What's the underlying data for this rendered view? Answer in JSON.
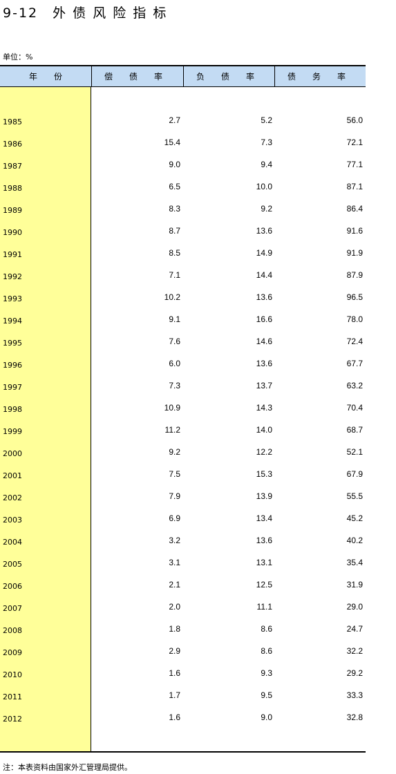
{
  "title": "9-12　外 债 风 险 指 标",
  "unit": "单位：%",
  "headers": [
    "年　　份",
    "偿　　债　　率",
    "负　　债　　率",
    "债　　务　　率"
  ],
  "rows": [
    {
      "year": "1985",
      "c1": "2.7",
      "c2": "5.2",
      "c3": "56.0"
    },
    {
      "year": "1986",
      "c1": "15.4",
      "c2": "7.3",
      "c3": "72.1"
    },
    {
      "year": "1987",
      "c1": "9.0",
      "c2": "9.4",
      "c3": "77.1"
    },
    {
      "year": "1988",
      "c1": "6.5",
      "c2": "10.0",
      "c3": "87.1"
    },
    {
      "year": "1989",
      "c1": "8.3",
      "c2": "9.2",
      "c3": "86.4"
    },
    {
      "year": "1990",
      "c1": "8.7",
      "c2": "13.6",
      "c3": "91.6"
    },
    {
      "year": "1991",
      "c1": "8.5",
      "c2": "14.9",
      "c3": "91.9"
    },
    {
      "year": "1992",
      "c1": "7.1",
      "c2": "14.4",
      "c3": "87.9"
    },
    {
      "year": "1993",
      "c1": "10.2",
      "c2": "13.6",
      "c3": "96.5"
    },
    {
      "year": "1994",
      "c1": "9.1",
      "c2": "16.6",
      "c3": "78.0"
    },
    {
      "year": "1995",
      "c1": "7.6",
      "c2": "14.6",
      "c3": "72.4"
    },
    {
      "year": "1996",
      "c1": "6.0",
      "c2": "13.6",
      "c3": "67.7"
    },
    {
      "year": "1997",
      "c1": "7.3",
      "c2": "13.7",
      "c3": "63.2"
    },
    {
      "year": "1998",
      "c1": "10.9",
      "c2": "14.3",
      "c3": "70.4"
    },
    {
      "year": "1999",
      "c1": "11.2",
      "c2": "14.0",
      "c3": "68.7"
    },
    {
      "year": "2000",
      "c1": "9.2",
      "c2": "12.2",
      "c3": "52.1"
    },
    {
      "year": "2001",
      "c1": "7.5",
      "c2": "15.3",
      "c3": "67.9"
    },
    {
      "year": "2002",
      "c1": "7.9",
      "c2": "13.9",
      "c3": "55.5"
    },
    {
      "year": "2003",
      "c1": "6.9",
      "c2": "13.4",
      "c3": "45.2"
    },
    {
      "year": "2004",
      "c1": "3.2",
      "c2": "13.6",
      "c3": "40.2"
    },
    {
      "year": "2005",
      "c1": "3.1",
      "c2": "13.1",
      "c3": "35.4"
    },
    {
      "year": "2006",
      "c1": "2.1",
      "c2": "12.5",
      "c3": "31.9"
    },
    {
      "year": "2007",
      "c1": "2.0",
      "c2": "11.1",
      "c3": "29.0"
    },
    {
      "year": "2008",
      "c1": "1.8",
      "c2": "8.6",
      "c3": "24.7"
    },
    {
      "year": "2009",
      "c1": "2.9",
      "c2": "8.6",
      "c3": "32.2"
    },
    {
      "year": "2010",
      "c1": "1.6",
      "c2": "9.3",
      "c3": "29.2"
    },
    {
      "year": "2011",
      "c1": "1.7",
      "c2": "9.5",
      "c3": "33.3"
    },
    {
      "year": "2012",
      "c1": "1.6",
      "c2": "9.0",
      "c3": "32.8"
    }
  ],
  "note": "注：本表资料由国家外汇管理局提供。"
}
